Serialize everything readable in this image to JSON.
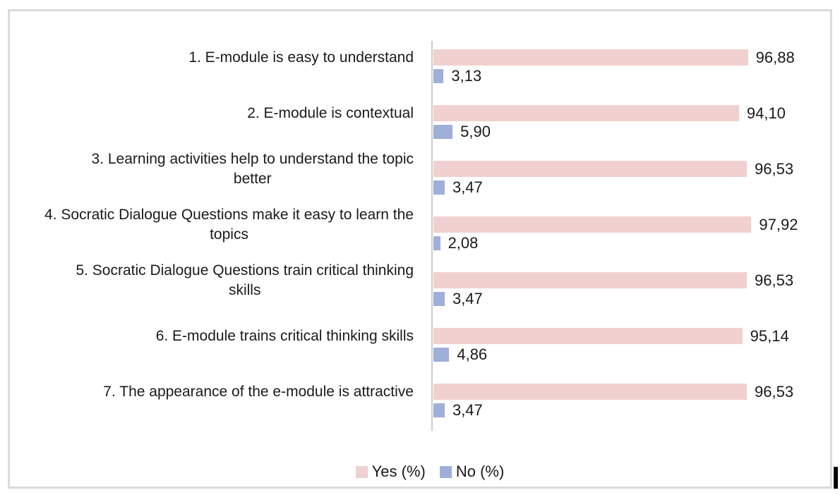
{
  "chart_data": {
    "type": "bar",
    "orientation": "horizontal",
    "title": "",
    "xlabel": "",
    "ylabel": "",
    "xlim": [
      0,
      100
    ],
    "grid": false,
    "legend_position": "bottom",
    "categories": [
      "1. E-module is easy to understand",
      "2. E-module is contextual",
      "3. Learning activities help to understand the topic\nbetter",
      "4. Socratic Dialogue Questions make it easy to learn the\ntopics",
      "5. Socratic Dialogue Questions train critical thinking\nskills",
      "6. E-module trains critical thinking skills",
      "7. The appearance of the e-module is attractive"
    ],
    "series": [
      {
        "name": "Yes (%)",
        "color": "#F1D0D0",
        "values": [
          96.88,
          94.1,
          96.53,
          97.92,
          96.53,
          95.14,
          96.53
        ],
        "value_labels": [
          "96,88",
          "94,10",
          "96,53",
          "97,92",
          "96,53",
          "95,14",
          "96,53"
        ]
      },
      {
        "name": "No (%)",
        "color": "#9FAFD7",
        "values": [
          3.13,
          5.9,
          3.47,
          2.08,
          3.47,
          4.86,
          3.47
        ],
        "value_labels": [
          "3,13",
          "5,90",
          "3,47",
          "2,08",
          "3,47",
          "4,86",
          "3,47"
        ]
      }
    ]
  },
  "legend": {
    "items": [
      {
        "label": "Yes (%)",
        "color": "#F1D0D0"
      },
      {
        "label": "No (%)",
        "color": "#9FAFD7"
      }
    ]
  },
  "style": {
    "frame_border_color": "#DBDBDB",
    "axis_line_color": "#CCCCCC",
    "text_color": "#1a1a1a",
    "background": "#ffffff"
  }
}
